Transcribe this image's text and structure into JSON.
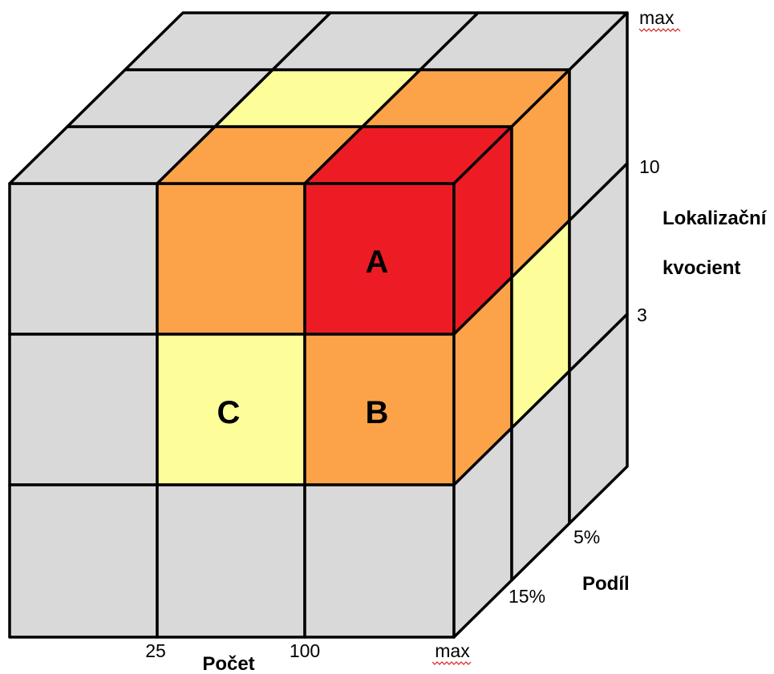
{
  "colors": {
    "gray": "#d9d9d9",
    "yellow": "#fdfd99",
    "orange": "#fca349",
    "red": "#ed1c24",
    "edge": "#000000"
  },
  "cells": {
    "A": "A",
    "B": "B",
    "C": "C"
  },
  "x_axis": {
    "title": "Počet",
    "ticks": [
      "25",
      "100",
      "max"
    ]
  },
  "y_axis": {
    "title_line1": "Lokalizační",
    "title_line2": "kvocient",
    "ticks": [
      "max",
      "10",
      "3"
    ]
  },
  "z_axis": {
    "title": "Podíl",
    "ticks": [
      "5%",
      "15%"
    ]
  }
}
